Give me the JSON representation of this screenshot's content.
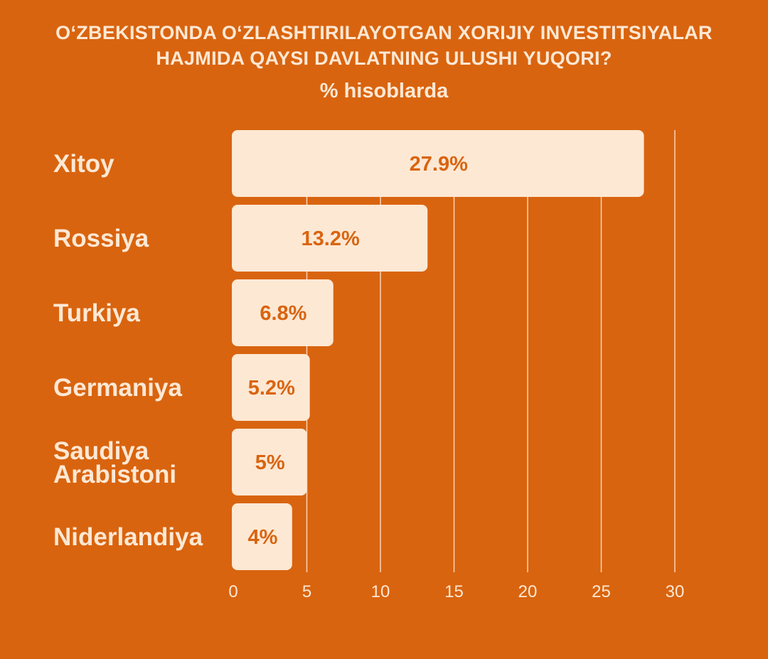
{
  "chart_data": {
    "type": "bar",
    "orientation": "horizontal",
    "title": "O‘ZBEKISTONDA O‘ZLASHTIRILAYOTGAN XORIJIY INVESTITSIYALAR HAJMIDA QAYSI DAVLATNING ULUSHI YUQORI?",
    "subtitle": "% hisoblarda",
    "categories": [
      "Xitoy",
      "Rossiya",
      "Turkiya",
      "Germaniya",
      "Saudiya Arabistoni",
      "Niderlandiya"
    ],
    "values": [
      27.9,
      13.2,
      6.8,
      5.2,
      5,
      4
    ],
    "value_labels": [
      "27.9%",
      "13.2%",
      "6.8%",
      "5.2%",
      "5%",
      "4%"
    ],
    "xlim": [
      0,
      30
    ],
    "xticks": [
      "0",
      "5",
      "10",
      "15",
      "20",
      "25",
      "30"
    ],
    "grid": true,
    "colors": {
      "background": "#d9640f",
      "bar": "#fde8d4",
      "text_light": "#fde8d4",
      "value_text": "#d9640f"
    }
  }
}
